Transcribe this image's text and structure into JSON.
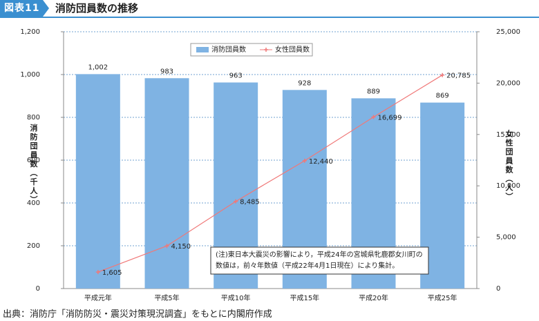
{
  "chart_data": {
    "type": "bar-line",
    "header_label": "図表11",
    "title": "消防団員数の推移",
    "categories": [
      "平成元年",
      "平成5年",
      "平成10年",
      "平成15年",
      "平成20年",
      "平成25年"
    ],
    "series": [
      {
        "name": "消防団員数",
        "color": "#7fb3e3",
        "axis": "y",
        "values": [
          1002,
          983,
          963,
          928,
          889,
          869
        ],
        "value_labels": [
          "1,002",
          "983",
          "963",
          "928",
          "889",
          "869"
        ]
      },
      {
        "name": "女性団員数",
        "color": "#f07878",
        "axis": "y2",
        "values": [
          1605,
          4150,
          8485,
          12440,
          16699,
          20785
        ],
        "value_labels": [
          "1,605",
          "4,150",
          "8,485",
          "12,440",
          "16,699",
          "20,785"
        ]
      }
    ],
    "ylabel": "消防団員数（千人）",
    "y2label": "女性団員数（人）",
    "ylim": [
      0,
      1200
    ],
    "yticks": [
      0,
      200,
      400,
      600,
      800,
      {
        "value": 1000,
        "label": "1,000"
      },
      {
        "value": 1200,
        "label": "1,200"
      }
    ],
    "y2lim": [
      0,
      25000
    ],
    "y2ticks": [
      0,
      {
        "value": 5000,
        "label": "5,000"
      },
      {
        "value": 10000,
        "label": "10,000"
      },
      {
        "value": 15000,
        "label": "15,000"
      },
      {
        "value": 20000,
        "label": "20,000"
      },
      {
        "value": 25000,
        "label": "25,000"
      }
    ],
    "grid": true,
    "note": [
      "(注)東日本大震災の影響により，平成24年の宮城県牝鹿郡女川町の",
      "数値は，前々年数値（平成22年4月1日現在）により集計。"
    ],
    "source": "出典：消防庁「消防防災・震災対策現況調査」をもとに内閣府作成"
  }
}
